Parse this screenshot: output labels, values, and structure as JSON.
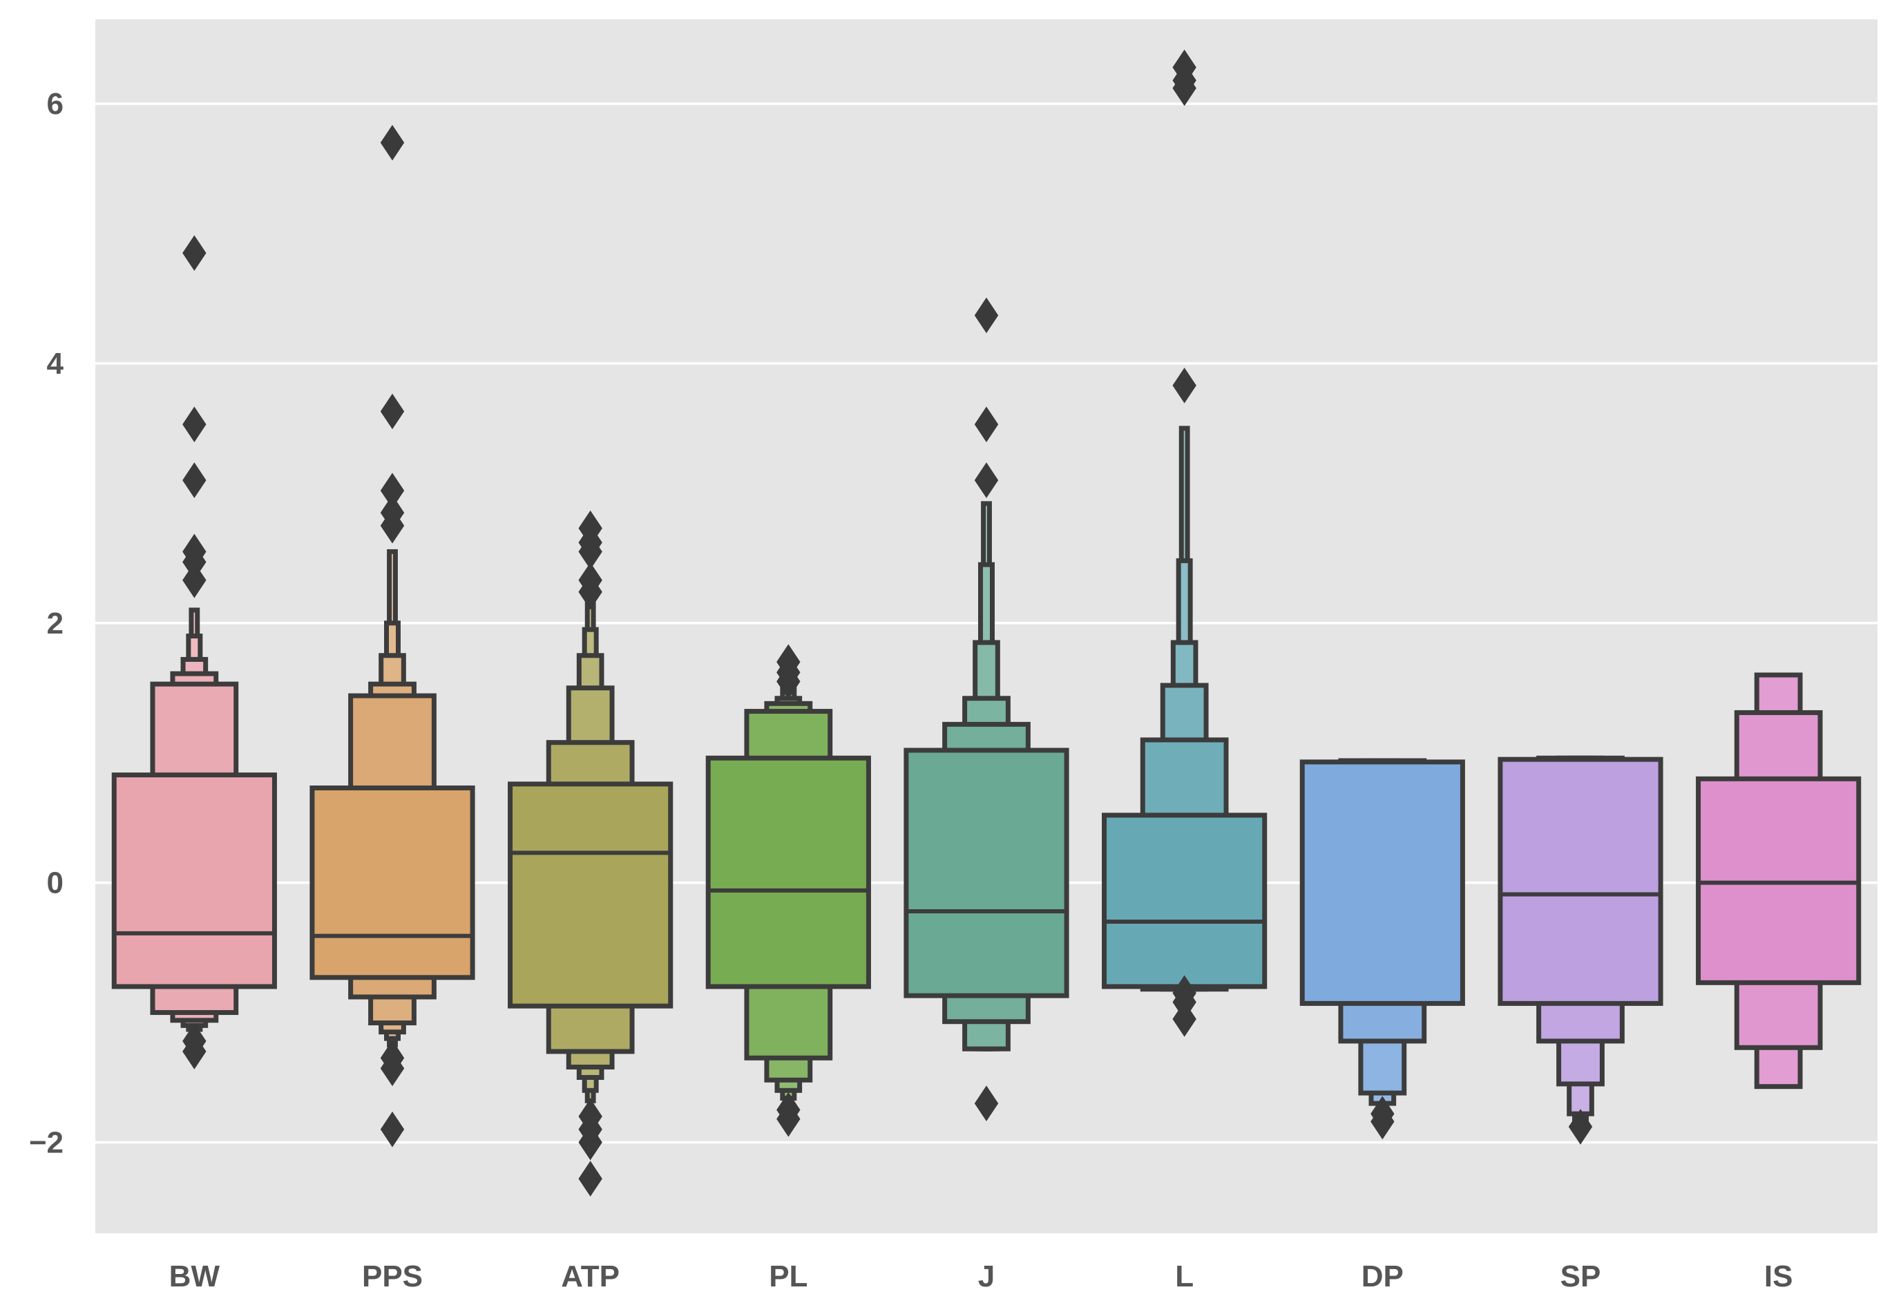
{
  "chart_data": {
    "type": "boxen",
    "title": "",
    "xlabel": "",
    "ylabel": "",
    "ylim": [
      -2.7,
      6.65
    ],
    "yticks": [
      -2,
      0,
      2,
      4,
      6
    ],
    "ytick_labels": [
      "−2",
      "0",
      "2",
      "4",
      "6"
    ],
    "grid": true,
    "categories": [
      "BW",
      "PPS",
      "ATP",
      "PL",
      "J",
      "L",
      "DP",
      "SP",
      "IS"
    ],
    "series": [
      {
        "label": "BW",
        "color": "#e8a5ae",
        "median": -0.39,
        "levels": [
          [
            -0.8,
            0.83
          ],
          [
            -1.0,
            1.53
          ],
          [
            -1.06,
            1.61
          ],
          [
            -1.1,
            1.72
          ],
          [
            -1.13,
            1.9
          ],
          [
            -1.16,
            2.1
          ]
        ],
        "outliers": [
          4.85,
          3.53,
          3.1,
          2.55,
          2.47,
          2.33,
          -1.22,
          -1.3
        ]
      },
      {
        "label": "PPS",
        "color": "#d8a46c",
        "median": -0.41,
        "levels": [
          [
            -0.73,
            0.73
          ],
          [
            -0.88,
            1.44
          ],
          [
            -1.08,
            1.53
          ],
          [
            -1.15,
            1.75
          ],
          [
            -1.2,
            2.0
          ],
          [
            -1.25,
            2.55
          ]
        ],
        "outliers": [
          5.7,
          3.63,
          3.02,
          2.85,
          2.75,
          -1.35,
          -1.43,
          -1.9
        ]
      },
      {
        "label": "ATP",
        "color": "#a9a55a",
        "median": 0.23,
        "levels": [
          [
            -0.95,
            0.76
          ],
          [
            -1.3,
            1.08
          ],
          [
            -1.42,
            1.5
          ],
          [
            -1.5,
            1.75
          ],
          [
            -1.6,
            1.95
          ],
          [
            -1.68,
            2.2
          ]
        ],
        "outliers": [
          2.73,
          2.62,
          2.55,
          2.33,
          2.24,
          -1.8,
          -1.9,
          -2.0,
          -2.28
        ]
      },
      {
        "label": "PL",
        "color": "#78ac52",
        "median": -0.06,
        "levels": [
          [
            -0.8,
            0.96
          ],
          [
            -1.35,
            1.32
          ],
          [
            -1.52,
            1.38
          ],
          [
            -1.6,
            1.42
          ],
          [
            -1.66,
            1.5
          ]
        ],
        "outliers": [
          1.7,
          1.62,
          1.55,
          -1.75,
          -1.82
        ]
      },
      {
        "label": "J",
        "color": "#6aaa95",
        "median": -0.22,
        "levels": [
          [
            -0.87,
            1.02
          ],
          [
            -1.07,
            1.22
          ],
          [
            -1.28,
            1.42
          ],
          [
            -1.28,
            1.85
          ],
          [
            -1.28,
            2.45
          ],
          [
            -1.28,
            2.92
          ]
        ],
        "outliers": [
          4.37,
          3.53,
          3.1,
          -1.7
        ]
      },
      {
        "label": "L",
        "color": "#66a9b5",
        "median": -0.3,
        "levels": [
          [
            -0.8,
            0.52
          ],
          [
            -0.82,
            1.1
          ],
          [
            -0.82,
            1.52
          ],
          [
            -0.82,
            1.85
          ],
          [
            -0.82,
            2.48
          ],
          [
            -0.82,
            3.5
          ]
        ],
        "outliers": [
          6.28,
          6.18,
          6.12,
          3.83,
          -0.85,
          -0.92,
          -1.05
        ]
      },
      {
        "label": "DP",
        "color": "#7eaade",
        "median": null,
        "levels": [
          [
            -0.93,
            0.93
          ],
          [
            -1.22,
            0.94
          ],
          [
            -1.62,
            0.94
          ],
          [
            -1.7,
            0.94
          ]
        ],
        "outliers": [
          -1.78,
          -1.84
        ]
      },
      {
        "label": "SP",
        "color": "#bda0e0",
        "median": -0.09,
        "levels": [
          [
            -0.93,
            0.95
          ],
          [
            -1.22,
            0.96
          ],
          [
            -1.55,
            0.96
          ],
          [
            -1.78,
            0.96
          ],
          [
            -1.86,
            0.96
          ]
        ],
        "outliers": [
          -1.88
        ]
      },
      {
        "label": "IS",
        "color": "#de90cc",
        "median": 0.0,
        "levels": [
          [
            -0.77,
            0.8
          ],
          [
            -1.27,
            1.31
          ],
          [
            -1.57,
            1.6
          ]
        ],
        "outliers": []
      }
    ]
  }
}
